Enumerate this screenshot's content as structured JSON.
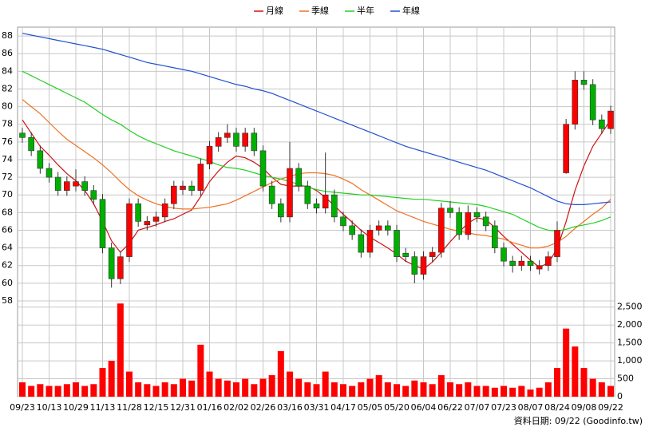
{
  "chart_data": {
    "type": "candlestick",
    "source": "資料日期: 09/22 (Goodinfo.tw)",
    "legend": "top",
    "grid": true,
    "categories": [
      "09/23",
      null,
      null,
      "10/13",
      null,
      null,
      "10/29",
      null,
      null,
      "11/13",
      null,
      null,
      "11/28",
      null,
      null,
      "12/15",
      null,
      null,
      "12/31",
      null,
      null,
      "01/16",
      null,
      null,
      "02/02",
      null,
      null,
      "02/26",
      null,
      null,
      "03/16",
      null,
      null,
      "03/31",
      null,
      null,
      "04/17",
      null,
      null,
      "05/05",
      null,
      null,
      "05/20",
      null,
      null,
      "06/04",
      null,
      null,
      "06/22",
      null,
      null,
      "07/07",
      null,
      null,
      "07/23",
      null,
      null,
      "08/07",
      null,
      null,
      "08/24",
      null,
      null,
      "09/08",
      null,
      null,
      "09/22"
    ],
    "open": [
      77,
      76.5,
      75,
      73,
      72,
      70.5,
      71,
      71.5,
      70.5,
      69.5,
      64,
      60.5,
      63,
      69,
      66.6,
      67,
      67.5,
      69,
      70.6,
      71,
      70.5,
      73.5,
      75.5,
      76.5,
      77,
      75.5,
      77,
      75,
      71,
      69,
      67.5,
      73,
      71,
      69,
      68.5,
      70,
      67.5,
      66.5,
      65.5,
      63.5,
      66,
      66.5,
      66,
      63.4,
      63,
      61,
      63,
      63.5,
      68.5,
      68,
      65.5,
      68,
      67.5,
      66.5,
      64,
      62.5,
      62,
      62.5,
      61.6,
      62,
      63,
      72.5,
      78,
      83,
      82.5,
      78.5,
      77.5
    ],
    "high": [
      77.6,
      77.1,
      75.6,
      73.6,
      72.6,
      72.1,
      72.9,
      72.1,
      71.1,
      70.1,
      64.6,
      63.6,
      69.6,
      69.6,
      67.6,
      68.1,
      69.6,
      71.6,
      71.6,
      71.6,
      74.1,
      76.1,
      77.1,
      78,
      77.6,
      77.6,
      77.6,
      75.6,
      71.6,
      69.6,
      76,
      73.6,
      71.6,
      69.6,
      74.8,
      70.6,
      68.1,
      67.1,
      66.1,
      66.6,
      67.1,
      67.1,
      66.6,
      64,
      63.6,
      63.6,
      64.1,
      69.1,
      69.3,
      68.6,
      68.8,
      68.6,
      68.1,
      67.1,
      64.6,
      63.1,
      63.1,
      63.1,
      62.6,
      63.6,
      67,
      78.6,
      84,
      84,
      83.1,
      79.1,
      80.1
    ],
    "low": [
      75.9,
      74.4,
      72.4,
      71.4,
      69.9,
      69.9,
      70.4,
      69.9,
      68.9,
      63.4,
      59.5,
      59.9,
      62.4,
      66.4,
      66,
      66.4,
      66.9,
      68.4,
      70,
      69.9,
      69.9,
      72.9,
      74.9,
      75.9,
      74.9,
      74.9,
      74.4,
      70.4,
      68.4,
      66.9,
      66.9,
      70.4,
      68.4,
      67.9,
      67.9,
      66.9,
      65.9,
      64.9,
      62.9,
      62.9,
      65.4,
      65.4,
      62.4,
      62.4,
      60,
      60.4,
      62.4,
      62.9,
      67.4,
      64.9,
      64.9,
      66.9,
      65.9,
      63.4,
      61.9,
      61.2,
      61.4,
      61.4,
      61,
      61.4,
      62.4,
      72.4,
      77.4,
      81.9,
      77.9,
      76.9,
      76.9
    ],
    "close": [
      76.5,
      75,
      73,
      72,
      70.5,
      71.5,
      71.5,
      70.5,
      69.5,
      64,
      60.5,
      63,
      69,
      67,
      67,
      67.5,
      69,
      71,
      71,
      70.5,
      73.5,
      75.5,
      76.5,
      77,
      75.5,
      77,
      75,
      71,
      69,
      67.5,
      73,
      71,
      69,
      68.5,
      70,
      67.5,
      66.5,
      65.5,
      63.5,
      66,
      66.5,
      66,
      63,
      63,
      61,
      63,
      63.5,
      68.5,
      68,
      65.5,
      68,
      67.5,
      66.5,
      64,
      62.5,
      62,
      62.5,
      62,
      62,
      63,
      66,
      78,
      83,
      82.5,
      78.5,
      77.5,
      79.5
    ],
    "up_color": "#ff0000",
    "down_color": "#00b000",
    "series": [
      {
        "name": "月線",
        "color": "#d01010",
        "values": [
          78.5,
          77,
          75.5,
          74.5,
          73.4,
          72.4,
          71.6,
          70.5,
          69,
          67,
          64.8,
          63.5,
          64.5,
          66,
          66.3,
          66.6,
          67,
          67.3,
          67.8,
          68.3,
          69.8,
          71.5,
          72.7,
          73.7,
          74.4,
          74.2,
          73.7,
          73,
          72,
          71.2,
          71,
          71,
          71,
          70.5,
          69.7,
          68.8,
          67.8,
          66.9,
          66,
          65.2,
          64.6,
          64,
          63.3,
          62.5,
          62,
          61.6,
          62.4,
          63.5,
          64.7,
          65.8,
          66.8,
          67.4,
          67.2,
          66.3,
          65.3,
          64.4,
          63.5,
          62.6,
          61.8,
          62.3,
          63.9,
          67,
          70.5,
          73.3,
          75.5,
          77,
          78.5
        ]
      },
      {
        "name": "季線",
        "color": "#f07020",
        "values": [
          80.8,
          80,
          79.2,
          78.2,
          77.2,
          76.3,
          75.6,
          74.9,
          74.2,
          73.4,
          72.5,
          71.5,
          70.6,
          69.9,
          69.4,
          69,
          68.7,
          68.5,
          68.4,
          68.4,
          68.5,
          68.6,
          68.8,
          69,
          69.4,
          69.9,
          70.4,
          70.9,
          71.4,
          71.8,
          72.1,
          72.4,
          72.5,
          72.5,
          72.4,
          72.2,
          71.8,
          71.3,
          70.6,
          70,
          69.4,
          68.8,
          68.2,
          67.8,
          67.4,
          67,
          66.7,
          66.4,
          66.1,
          65.9,
          65.7,
          65.5,
          65.4,
          65.2,
          65,
          64.6,
          64.3,
          64,
          64,
          64.2,
          64.6,
          65.3,
          66.2,
          67,
          67.8,
          68.5,
          69.5
        ]
      },
      {
        "name": "半年",
        "color": "#20d020",
        "values": [
          84,
          83.5,
          83,
          82.5,
          82,
          81.5,
          81,
          80.5,
          79.8,
          79.1,
          78.5,
          78,
          77.3,
          76.7,
          76.2,
          75.8,
          75.4,
          75,
          74.7,
          74.4,
          74.1,
          73.8,
          73.4,
          73.1,
          73,
          72.8,
          72.5,
          72.2,
          72,
          71.8,
          71.5,
          71.2,
          70.9,
          70.6,
          70.4,
          70.3,
          70.2,
          70.1,
          70,
          70,
          69.9,
          69.8,
          69.7,
          69.6,
          69.5,
          69.5,
          69.4,
          69.3,
          69.2,
          69.1,
          69,
          68.9,
          68.7,
          68.4,
          68.1,
          67.8,
          67.3,
          66.8,
          66.3,
          66,
          65.9,
          66.1,
          66.4,
          66.6,
          66.8,
          67.1,
          67.5
        ]
      },
      {
        "name": "年線",
        "color": "#2050d0",
        "values": [
          88.3,
          88.1,
          87.9,
          87.7,
          87.5,
          87.3,
          87.1,
          86.9,
          86.7,
          86.5,
          86.2,
          85.9,
          85.6,
          85.3,
          85,
          84.8,
          84.6,
          84.4,
          84.2,
          84,
          83.7,
          83.4,
          83.1,
          82.8,
          82.5,
          82.3,
          82,
          81.8,
          81.5,
          81.1,
          80.7,
          80.3,
          79.9,
          79.5,
          79.1,
          78.7,
          78.3,
          77.9,
          77.5,
          77.1,
          76.7,
          76.3,
          75.9,
          75.5,
          75.2,
          74.9,
          74.6,
          74.3,
          74,
          73.7,
          73.4,
          73.1,
          72.8,
          72.4,
          72,
          71.6,
          71.2,
          70.8,
          70.3,
          69.8,
          69.3,
          69,
          68.9,
          68.9,
          69,
          69.1,
          69.2
        ]
      }
    ],
    "volume": {
      "axis": "y2",
      "color": "#ff0000",
      "values": [
        400,
        300,
        350,
        300,
        300,
        350,
        400,
        300,
        350,
        800,
        1000,
        2600,
        700,
        400,
        350,
        300,
        400,
        350,
        500,
        450,
        1450,
        700,
        500,
        450,
        400,
        500,
        350,
        500,
        600,
        1270,
        700,
        500,
        400,
        350,
        700,
        400,
        350,
        300,
        400,
        500,
        600,
        400,
        350,
        300,
        450,
        400,
        350,
        600,
        400,
        350,
        400,
        300,
        300,
        250,
        300,
        250,
        300,
        200,
        250,
        400,
        800,
        1900,
        1400,
        800,
        500,
        400,
        300
      ]
    },
    "ylim": [
      57,
      89
    ],
    "yticks": [
      58,
      60,
      62,
      64,
      66,
      68,
      70,
      72,
      74,
      76,
      78,
      80,
      82,
      84,
      86,
      88
    ],
    "y2lim": [
      0,
      2650
    ],
    "y2ticks": [
      0,
      500,
      {
        "value": 1000,
        "label": "1,000"
      },
      {
        "value": 1500,
        "label": "1,500"
      },
      {
        "value": 2000,
        "label": "2,000"
      },
      {
        "value": 2500,
        "label": "2,500"
      }
    ]
  }
}
